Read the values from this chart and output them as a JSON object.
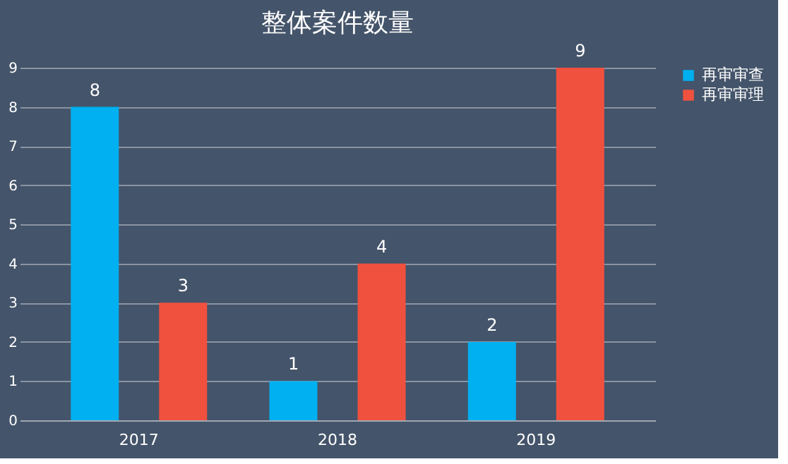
{
  "chart_data": {
    "type": "bar",
    "title": "整体案件数量",
    "categories": [
      "2017",
      "2018",
      "2019"
    ],
    "series": [
      {
        "name": "再审审查",
        "color": "#00b0f0",
        "values": [
          8,
          1,
          2
        ]
      },
      {
        "name": "再审审理",
        "color": "#f0513f",
        "values": [
          3,
          4,
          9
        ]
      }
    ],
    "ylim": [
      0,
      9
    ],
    "yticks": [
      0,
      1,
      2,
      3,
      4,
      5,
      6,
      7,
      8,
      9
    ],
    "grid": "y",
    "legend": "right",
    "data_labels": true
  }
}
